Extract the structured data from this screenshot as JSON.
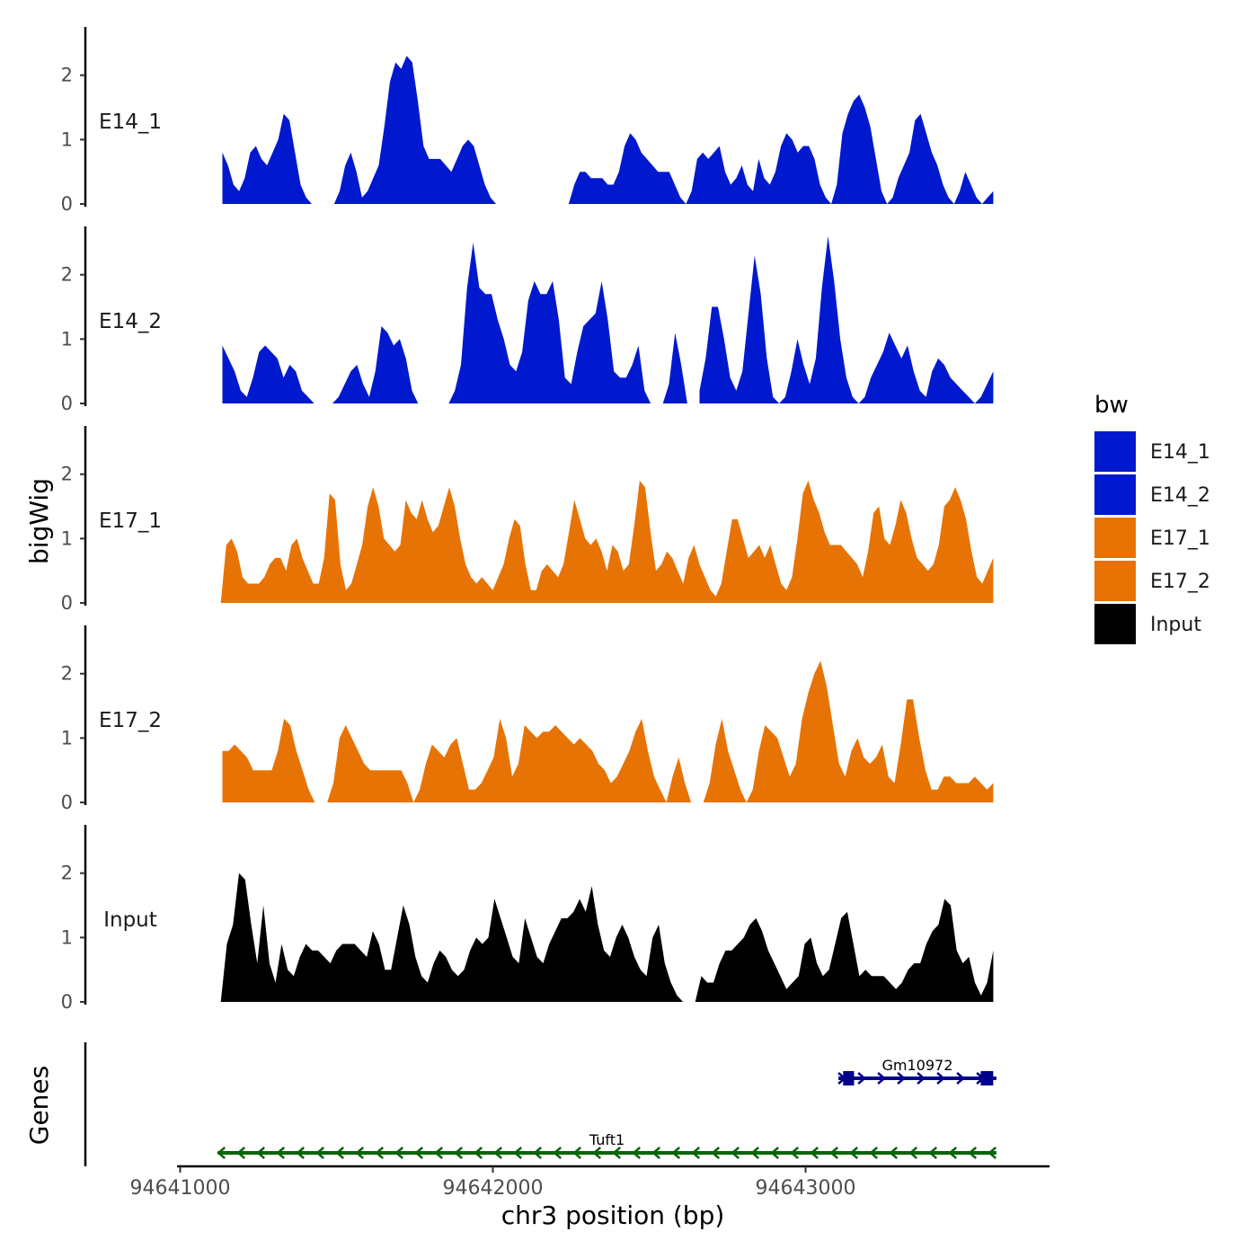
{
  "chart_data": {
    "type": "area",
    "xlabel": "chr3 position (bp)",
    "ylabel": "bigWig",
    "genes_label": "Genes",
    "xlim": [
      94640990,
      94643780
    ],
    "x_ticks": [
      94641000,
      94642000,
      94643000
    ],
    "x_tick_labels": [
      "94641000",
      "94642000",
      "94643000"
    ],
    "ylim": [
      0,
      2.75
    ],
    "y_ticks": [
      0,
      1,
      2
    ],
    "y_tick_labels": [
      "0",
      "1",
      "2"
    ],
    "legend": {
      "title": "bw",
      "placement": "right",
      "entries": [
        {
          "label": "E14_1",
          "color": "#0019CF"
        },
        {
          "label": "E14_2",
          "color": "#0019CF"
        },
        {
          "label": "E17_1",
          "color": "#E87305"
        },
        {
          "label": "E17_2",
          "color": "#E87305"
        },
        {
          "label": "Input",
          "color": "#000000"
        }
      ]
    },
    "series": [
      {
        "name": "E14_1",
        "color": "#0019CF",
        "x_start": 94641135,
        "x_end": 94643600,
        "values": [
          0.8,
          0.6,
          0.3,
          0.2,
          0.4,
          0.8,
          0.9,
          0.7,
          0.6,
          0.8,
          1.0,
          1.4,
          1.3,
          0.8,
          0.3,
          0.1,
          0,
          null,
          null,
          null,
          0,
          0.2,
          0.6,
          0.8,
          0.5,
          0.1,
          0.2,
          0.4,
          0.6,
          1.2,
          1.9,
          2.2,
          2.1,
          2.3,
          2.2,
          1.6,
          0.9,
          0.7,
          0.7,
          0.7,
          0.6,
          0.5,
          0.7,
          0.9,
          1.0,
          0.9,
          0.6,
          0.3,
          0.1,
          0,
          null,
          null,
          null,
          null,
          null,
          null,
          null,
          null,
          null,
          null,
          null,
          null,
          0,
          0.3,
          0.5,
          0.5,
          0.4,
          0.4,
          0.4,
          0.3,
          0.3,
          0.5,
          0.9,
          1.1,
          1.0,
          0.8,
          0.7,
          0.6,
          0.5,
          0.5,
          0.5,
          0.3,
          0.1,
          0,
          0.2,
          0.7,
          0.8,
          0.7,
          0.8,
          0.9,
          0.5,
          0.3,
          0.4,
          0.6,
          0.3,
          0.2,
          0.7,
          0.4,
          0.3,
          0.5,
          0.9,
          1.1,
          1.0,
          0.8,
          0.9,
          0.9,
          0.7,
          0.3,
          0.1,
          0,
          0.3,
          1.1,
          1.4,
          1.6,
          1.7,
          1.5,
          1.2,
          0.7,
          0.2,
          0,
          0.1,
          0.4,
          0.6,
          0.8,
          1.3,
          1.4,
          1.1,
          0.8,
          0.6,
          0.3,
          0.1,
          0,
          0.2,
          0.5,
          0.3,
          0.1,
          0,
          0.1,
          0.2
        ]
      },
      {
        "name": "E14_2",
        "color": "#0019CF",
        "x_start": 94641135,
        "x_end": 94643600,
        "values": [
          0.9,
          0.7,
          0.5,
          0.2,
          0.1,
          0.4,
          0.8,
          0.9,
          0.8,
          0.7,
          0.4,
          0.6,
          0.5,
          0.2,
          0.1,
          0,
          null,
          null,
          0,
          0.1,
          0.3,
          0.5,
          0.6,
          0.3,
          0.1,
          0.5,
          1.2,
          1.1,
          0.9,
          1.0,
          0.7,
          0.2,
          0,
          null,
          null,
          null,
          null,
          0,
          0.2,
          0.6,
          1.8,
          2.5,
          1.8,
          1.7,
          1.7,
          1.3,
          1.0,
          0.6,
          0.5,
          0.8,
          1.6,
          1.9,
          1.7,
          1.7,
          1.9,
          1.3,
          0.4,
          0.3,
          0.8,
          1.2,
          1.3,
          1.4,
          1.9,
          1.3,
          0.5,
          0.4,
          0.4,
          0.6,
          0.9,
          0.2,
          0,
          null,
          0,
          0.3,
          1.1,
          0.6,
          0,
          null,
          0.2,
          0.7,
          1.5,
          1.5,
          1.0,
          0.4,
          0.2,
          0.5,
          1.4,
          2.3,
          1.7,
          0.7,
          0.1,
          0,
          0.1,
          0.5,
          1.0,
          0.6,
          0.3,
          0.7,
          1.8,
          2.6,
          1.9,
          1.0,
          0.4,
          0.1,
          0,
          0.1,
          0.4,
          0.6,
          0.8,
          1.1,
          0.9,
          0.7,
          0.9,
          0.5,
          0.2,
          0.1,
          0.5,
          0.7,
          0.6,
          0.4,
          0.3,
          0.2,
          0.1,
          0,
          0.1,
          0.3,
          0.5
        ]
      },
      {
        "name": "E17_1",
        "color": "#E87305",
        "x_start": 94641130,
        "x_end": 94643600,
        "values": [
          0,
          0.9,
          1.0,
          0.8,
          0.4,
          0.3,
          0.3,
          0.3,
          0.4,
          0.6,
          0.7,
          0.7,
          0.5,
          0.9,
          1.0,
          0.7,
          0.5,
          0.3,
          0.3,
          0.7,
          1.7,
          1.6,
          0.6,
          0.2,
          0.3,
          0.6,
          0.9,
          1.5,
          1.8,
          1.5,
          1.0,
          0.9,
          0.8,
          0.9,
          1.6,
          1.4,
          1.3,
          1.6,
          1.3,
          1.1,
          1.2,
          1.5,
          1.8,
          1.5,
          1.0,
          0.6,
          0.4,
          0.3,
          0.4,
          0.3,
          0.2,
          0.4,
          0.6,
          1.0,
          1.3,
          1.2,
          0.6,
          0.2,
          0.2,
          0.5,
          0.6,
          0.5,
          0.4,
          0.6,
          1.1,
          1.6,
          1.3,
          1.0,
          0.9,
          1.0,
          0.8,
          0.5,
          0.9,
          0.8,
          0.5,
          0.6,
          1.2,
          1.9,
          1.8,
          1.1,
          0.5,
          0.6,
          0.8,
          0.7,
          0.5,
          0.3,
          0.7,
          0.9,
          0.6,
          0.4,
          0.2,
          0.1,
          0.3,
          0.8,
          1.3,
          1.3,
          1.0,
          0.7,
          0.8,
          0.9,
          0.7,
          0.9,
          0.6,
          0.3,
          0.2,
          0.4,
          1.0,
          1.7,
          1.9,
          1.6,
          1.4,
          1.1,
          0.9,
          0.9,
          0.9,
          0.8,
          0.7,
          0.6,
          0.4,
          0.8,
          1.4,
          1.5,
          1.0,
          0.9,
          1.2,
          1.6,
          1.4,
          1.0,
          0.7,
          0.6,
          0.5,
          0.6,
          0.9,
          1.5,
          1.6,
          1.8,
          1.6,
          1.3,
          0.8,
          0.4,
          0.3,
          0.5,
          0.7
        ]
      },
      {
        "name": "E17_2",
        "color": "#E87305",
        "x_start": 94641135,
        "x_end": 94643600,
        "values": [
          0.8,
          0.8,
          0.9,
          0.8,
          0.7,
          0.5,
          0.5,
          0.5,
          0.5,
          0.8,
          1.3,
          1.2,
          0.8,
          0.5,
          0.2,
          0,
          null,
          0,
          0.3,
          1.0,
          1.2,
          1.0,
          0.8,
          0.6,
          0.5,
          0.5,
          0.5,
          0.5,
          0.5,
          0.5,
          0.3,
          0,
          0.2,
          0.6,
          0.9,
          0.8,
          0.7,
          0.9,
          1.0,
          0.6,
          0.2,
          0.2,
          0.3,
          0.5,
          0.7,
          1.3,
          1.0,
          0.4,
          0.6,
          1.2,
          1.1,
          1.0,
          1.1,
          1.1,
          1.2,
          1.1,
          1.0,
          0.9,
          1.0,
          0.9,
          0.8,
          0.6,
          0.5,
          0.3,
          0.4,
          0.6,
          0.8,
          1.1,
          1.3,
          0.8,
          0.4,
          0.2,
          0,
          0.4,
          0.7,
          0.3,
          0,
          null,
          0,
          0.3,
          0.9,
          1.3,
          0.8,
          0.5,
          0.2,
          0,
          0.2,
          0.8,
          1.2,
          1.1,
          1.0,
          0.7,
          0.4,
          0.6,
          1.3,
          1.7,
          2.0,
          2.2,
          1.8,
          1.2,
          0.6,
          0.4,
          0.8,
          1.0,
          0.7,
          0.6,
          0.7,
          0.9,
          0.4,
          0.3,
          0.9,
          1.6,
          1.6,
          1.0,
          0.5,
          0.2,
          0.2,
          0.4,
          0.4,
          0.3,
          0.3,
          0.3,
          0.4,
          0.3,
          0.2,
          0.3
        ]
      },
      {
        "name": "Input",
        "color": "#000000",
        "x_start": 94641130,
        "x_end": 94643600,
        "values": [
          0,
          0.9,
          1.2,
          2.0,
          1.9,
          1.2,
          0.6,
          1.5,
          0.6,
          0.3,
          0.9,
          0.5,
          0.4,
          0.7,
          0.9,
          0.8,
          0.8,
          0.7,
          0.6,
          0.8,
          0.9,
          0.9,
          0.9,
          0.8,
          0.7,
          1.1,
          0.9,
          0.5,
          0.5,
          1.0,
          1.5,
          1.2,
          0.7,
          0.4,
          0.3,
          0.6,
          0.8,
          0.7,
          0.5,
          0.4,
          0.5,
          0.8,
          1.0,
          0.9,
          1.0,
          1.6,
          1.3,
          1.0,
          0.7,
          0.6,
          1.3,
          1.0,
          0.7,
          0.6,
          0.9,
          1.1,
          1.3,
          1.3,
          1.4,
          1.6,
          1.4,
          1.8,
          1.2,
          0.8,
          0.7,
          1.0,
          1.2,
          1.0,
          0.7,
          0.5,
          0.4,
          1.0,
          1.2,
          0.6,
          0.3,
          0.1,
          0,
          null,
          0,
          0.4,
          0.3,
          0.3,
          0.6,
          0.8,
          0.8,
          0.9,
          1.0,
          1.2,
          1.3,
          1.1,
          0.8,
          0.6,
          0.4,
          0.2,
          0.3,
          0.4,
          0.9,
          1.0,
          0.6,
          0.4,
          0.5,
          0.9,
          1.3,
          1.4,
          0.9,
          0.4,
          0.5,
          0.4,
          0.4,
          0.4,
          0.3,
          0.2,
          0.3,
          0.5,
          0.6,
          0.6,
          0.9,
          1.1,
          1.2,
          1.6,
          1.5,
          0.8,
          0.6,
          0.7,
          0.3,
          0.1,
          0.3,
          0.8
        ]
      }
    ],
    "genes": [
      {
        "name": "Gm10972",
        "start": 94643105,
        "end": 94643610,
        "strand": "+",
        "color": "#00008B",
        "exons": [
          [
            94643120,
            94643155
          ],
          [
            94643560,
            94643600
          ]
        ]
      },
      {
        "name": "Tuft1",
        "start": 94641120,
        "end": 94643610,
        "strand": "-",
        "color": "#0A640A",
        "exons": []
      }
    ]
  }
}
